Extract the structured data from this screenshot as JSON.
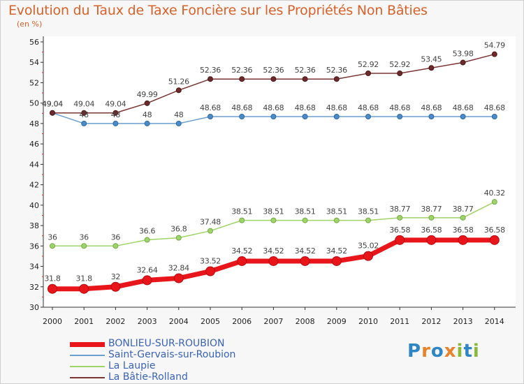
{
  "title": "Evolution du Taux de Taxe Foncière sur les Propriétés Non Bâties",
  "unit_label": "(en %)",
  "logo_text": "Proxiti",
  "chart_data": {
    "type": "line",
    "title": "Evolution du Taux de Taxe Foncière sur les Propriétés Non Bâties",
    "ylabel": "(en %)",
    "xlabel": "",
    "ylim": [
      30,
      56
    ],
    "yticks": [
      30,
      32,
      34,
      36,
      38,
      40,
      42,
      44,
      46,
      48,
      50,
      52,
      54,
      56
    ],
    "grid": false,
    "legend_position": "bottom-left",
    "x": [
      "2000",
      "2001",
      "2002",
      "2003",
      "2004",
      "2005",
      "2006",
      "2007",
      "2008",
      "2009",
      "2010",
      "2011",
      "2012",
      "2013",
      "2014"
    ],
    "series": [
      {
        "name": "BONLIEU-SUR-ROUBION",
        "color": "#e8161b",
        "values": [
          31.8,
          31.8,
          32,
          32.64,
          32.84,
          33.52,
          34.52,
          34.52,
          34.52,
          34.52,
          35.02,
          36.58,
          36.58,
          36.58,
          36.58
        ],
        "labels": [
          "31.8",
          "31.8",
          "32",
          "32.64",
          "32.84",
          "33.52",
          "34.52",
          "34.52",
          "34.52",
          "34.52",
          "35.02",
          "36.58",
          "36.58",
          "36.58",
          "36.58"
        ]
      },
      {
        "name": "Saint-Gervais-sur-Roubion",
        "color": "#6a9fd0",
        "values": [
          49.04,
          48,
          48,
          48,
          48,
          48.68,
          48.68,
          48.68,
          48.68,
          48.68,
          48.68,
          48.68,
          48.68,
          48.68,
          48.68
        ],
        "labels": [
          "49.04",
          "48",
          "48",
          "48",
          "48",
          "48.68",
          "48.68",
          "48.68",
          "48.68",
          "48.68",
          "48.68",
          "48.68",
          "48.68",
          "48.68",
          "48.68"
        ]
      },
      {
        "name": "La Laupie",
        "color": "#9ed468",
        "values": [
          36,
          36,
          36,
          36.6,
          36.8,
          37.48,
          38.51,
          38.51,
          38.51,
          38.51,
          38.51,
          38.77,
          38.77,
          38.77,
          40.32
        ],
        "labels": [
          "36",
          "36",
          "36",
          "36.6",
          "36.8",
          "37.48",
          "38.51",
          "38.51",
          "38.51",
          "38.51",
          "38.51",
          "38.77",
          "38.77",
          "38.77",
          "40.32"
        ]
      },
      {
        "name": "La Bâtie-Rolland",
        "color": "#7a3535",
        "values": [
          49.04,
          49.04,
          49.04,
          49.99,
          51.26,
          52.36,
          52.36,
          52.36,
          52.36,
          52.36,
          52.92,
          52.92,
          53.45,
          53.98,
          54.79
        ],
        "labels": [
          "49.04",
          "49.04",
          "49.04",
          "49.99",
          "51.26",
          "52.36",
          "52.36",
          "52.36",
          "52.36",
          "52.36",
          "52.92",
          "52.92",
          "53.45",
          "53.98",
          "54.79"
        ]
      }
    ]
  }
}
